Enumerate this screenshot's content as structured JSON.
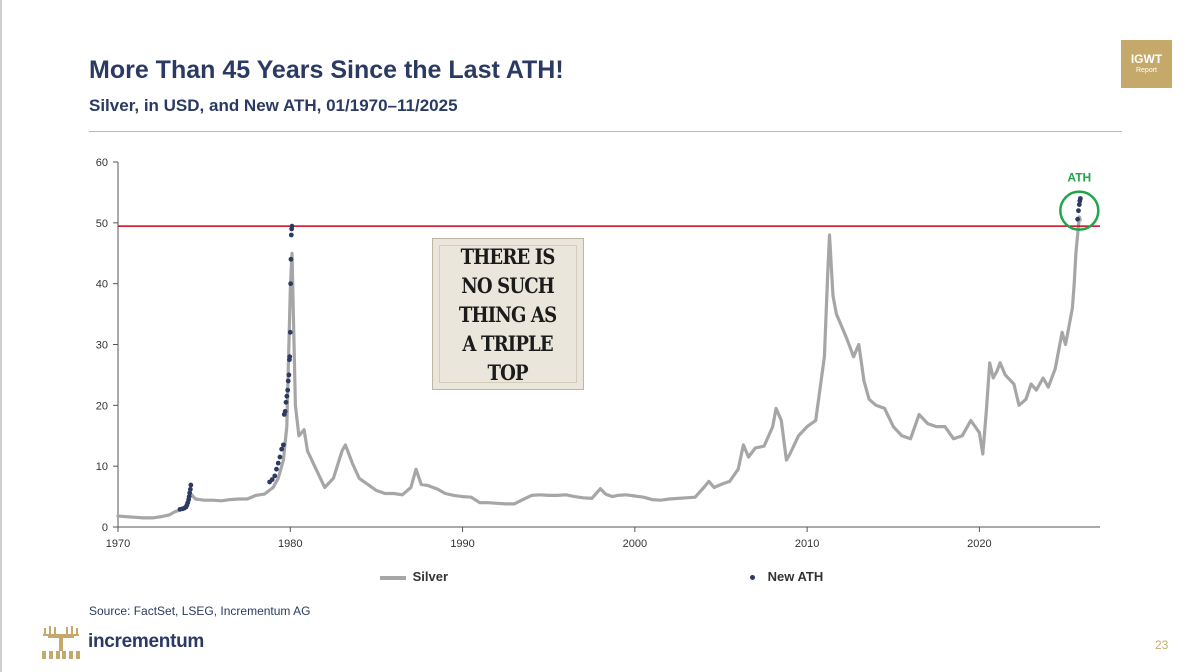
{
  "header": {
    "title": "More Than 45 Years Since the Last ATH!",
    "subtitle": "Silver, in USD, and New ATH, 01/1970–11/2025"
  },
  "badge": {
    "line1": "IGWT",
    "line2": "Report"
  },
  "poster": {
    "text": "THERE IS\nNO SUCH\nTHING AS\nA TRIPLE\nTOP"
  },
  "footer": {
    "source": "Source: FactSet, LSEG, Incrementum AG",
    "logo_text": "incrementum",
    "page_number": "23"
  },
  "colors": {
    "title": "#2b3a63",
    "silver_line": "#a6a6a6",
    "ath_dots": "#2d3a61",
    "ath_line": "#d0021b",
    "ath_circle": "#1fa64a",
    "gold_accent": "#c4a96b"
  },
  "chart_data": {
    "type": "line",
    "title": "",
    "xlabel": "",
    "ylabel": "",
    "xlim": [
      1970,
      2027
    ],
    "ylim": [
      0,
      60
    ],
    "x_ticks": [
      "1970",
      "1980",
      "1990",
      "2000",
      "2010",
      "2020"
    ],
    "y_ticks": [
      "0",
      "10",
      "20",
      "30",
      "40",
      "50",
      "60"
    ],
    "grid": false,
    "legend_position": "bottom",
    "series": [
      {
        "name": "Silver",
        "type": "line",
        "x": [
          1970.0,
          1970.5,
          1971.0,
          1971.5,
          1972.0,
          1972.5,
          1973.0,
          1973.3,
          1973.6,
          1974.0,
          1974.2,
          1974.5,
          1975.0,
          1975.5,
          1976.0,
          1976.5,
          1977.0,
          1977.5,
          1978.0,
          1978.5,
          1979.0,
          1979.3,
          1979.6,
          1979.8,
          1980.0,
          1980.1,
          1980.3,
          1980.5,
          1980.8,
          1981.0,
          1981.5,
          1982.0,
          1982.5,
          1983.0,
          1983.2,
          1983.6,
          1984.0,
          1984.5,
          1985.0,
          1985.5,
          1986.0,
          1986.5,
          1987.0,
          1987.3,
          1987.6,
          1988.0,
          1988.5,
          1989.0,
          1989.5,
          1990.0,
          1990.5,
          1991.0,
          1991.5,
          1992.0,
          1992.5,
          1993.0,
          1993.5,
          1994.0,
          1994.5,
          1995.0,
          1995.5,
          1996.0,
          1996.5,
          1997.0,
          1997.5,
          1998.0,
          1998.3,
          1998.7,
          1999.0,
          1999.5,
          2000.0,
          2000.5,
          2001.0,
          2001.5,
          2002.0,
          2002.5,
          2003.0,
          2003.5,
          2004.0,
          2004.3,
          2004.6,
          2005.0,
          2005.5,
          2006.0,
          2006.3,
          2006.6,
          2007.0,
          2007.5,
          2008.0,
          2008.2,
          2008.5,
          2008.8,
          2009.0,
          2009.5,
          2010.0,
          2010.5,
          2011.0,
          2011.2,
          2011.3,
          2011.5,
          2011.7,
          2012.0,
          2012.3,
          2012.7,
          2013.0,
          2013.3,
          2013.6,
          2014.0,
          2014.5,
          2015.0,
          2015.5,
          2016.0,
          2016.5,
          2017.0,
          2017.5,
          2018.0,
          2018.5,
          2019.0,
          2019.5,
          2020.0,
          2020.2,
          2020.4,
          2020.6,
          2020.8,
          2021.0,
          2021.2,
          2021.5,
          2022.0,
          2022.3,
          2022.7,
          2023.0,
          2023.3,
          2023.7,
          2024.0,
          2024.4,
          2024.8,
          2025.0,
          2025.2,
          2025.4,
          2025.5,
          2025.6,
          2025.7,
          2025.8,
          2025.85
        ],
        "values": [
          1.8,
          1.7,
          1.6,
          1.5,
          1.5,
          1.7,
          2.0,
          2.5,
          2.8,
          3.5,
          5.5,
          4.6,
          4.4,
          4.4,
          4.3,
          4.5,
          4.6,
          4.6,
          5.2,
          5.4,
          6.5,
          8.0,
          11.0,
          16.5,
          39.0,
          45.0,
          20.0,
          15.0,
          16.0,
          12.5,
          9.5,
          6.5,
          8.0,
          12.5,
          13.5,
          10.5,
          8.0,
          7.0,
          6.0,
          5.5,
          5.5,
          5.3,
          6.5,
          9.5,
          7.0,
          6.8,
          6.3,
          5.5,
          5.2,
          5.0,
          4.9,
          4.0,
          4.0,
          3.9,
          3.8,
          3.8,
          4.5,
          5.2,
          5.3,
          5.2,
          5.2,
          5.3,
          5.0,
          4.8,
          4.7,
          6.3,
          5.4,
          5.0,
          5.2,
          5.3,
          5.1,
          4.9,
          4.5,
          4.4,
          4.6,
          4.7,
          4.8,
          4.9,
          6.5,
          7.5,
          6.5,
          7.0,
          7.5,
          9.5,
          13.5,
          11.5,
          13.0,
          13.3,
          16.5,
          19.5,
          17.5,
          11.0,
          12.0,
          15.0,
          16.5,
          17.5,
          28.0,
          42.0,
          48.0,
          38.0,
          35.0,
          33.0,
          31.0,
          28.0,
          30.0,
          24.0,
          21.0,
          20.0,
          19.5,
          16.5,
          15.0,
          14.5,
          18.5,
          17.0,
          16.5,
          16.5,
          14.5,
          15.0,
          17.5,
          15.5,
          12.0,
          19.0,
          27.0,
          24.5,
          25.5,
          27.0,
          25.0,
          23.5,
          20.0,
          21.0,
          23.5,
          22.5,
          24.5,
          23.0,
          26.0,
          32.0,
          30.0,
          33.0,
          36.0,
          40.0,
          45.0,
          48.0,
          51.0,
          50.5
        ]
      },
      {
        "name": "New ATH",
        "type": "scatter",
        "x": [
          1973.6,
          1973.75,
          1973.85,
          1973.95,
          1974.0,
          1974.05,
          1974.1,
          1974.13,
          1974.16,
          1974.2,
          1974.23,
          1978.8,
          1978.95,
          1979.1,
          1979.2,
          1979.3,
          1979.4,
          1979.5,
          1979.6,
          1979.65,
          1979.7,
          1979.75,
          1979.8,
          1979.85,
          1979.88,
          1979.92,
          1979.95,
          1979.97,
          1980.0,
          1980.02,
          1980.04,
          1980.06,
          1980.08,
          1980.1,
          2025.7,
          2025.75,
          2025.8,
          2025.83,
          2025.86
        ],
        "values": [
          2.9,
          3.0,
          3.1,
          3.3,
          3.6,
          4.0,
          4.5,
          5.0,
          5.6,
          6.2,
          6.9,
          7.4,
          7.8,
          8.4,
          9.5,
          10.5,
          11.5,
          12.8,
          13.5,
          18.5,
          19.0,
          20.5,
          21.5,
          22.5,
          24.0,
          25.0,
          27.5,
          28.0,
          32.0,
          40.0,
          44.0,
          48.0,
          49.0,
          49.45,
          50.6,
          52.0,
          53.0,
          53.6,
          54.0
        ]
      }
    ],
    "annotations": [
      {
        "type": "hline",
        "y": 49.45,
        "label": ""
      },
      {
        "type": "circle-label",
        "x": 2025.8,
        "y": 52,
        "label": "ATH"
      }
    ]
  }
}
